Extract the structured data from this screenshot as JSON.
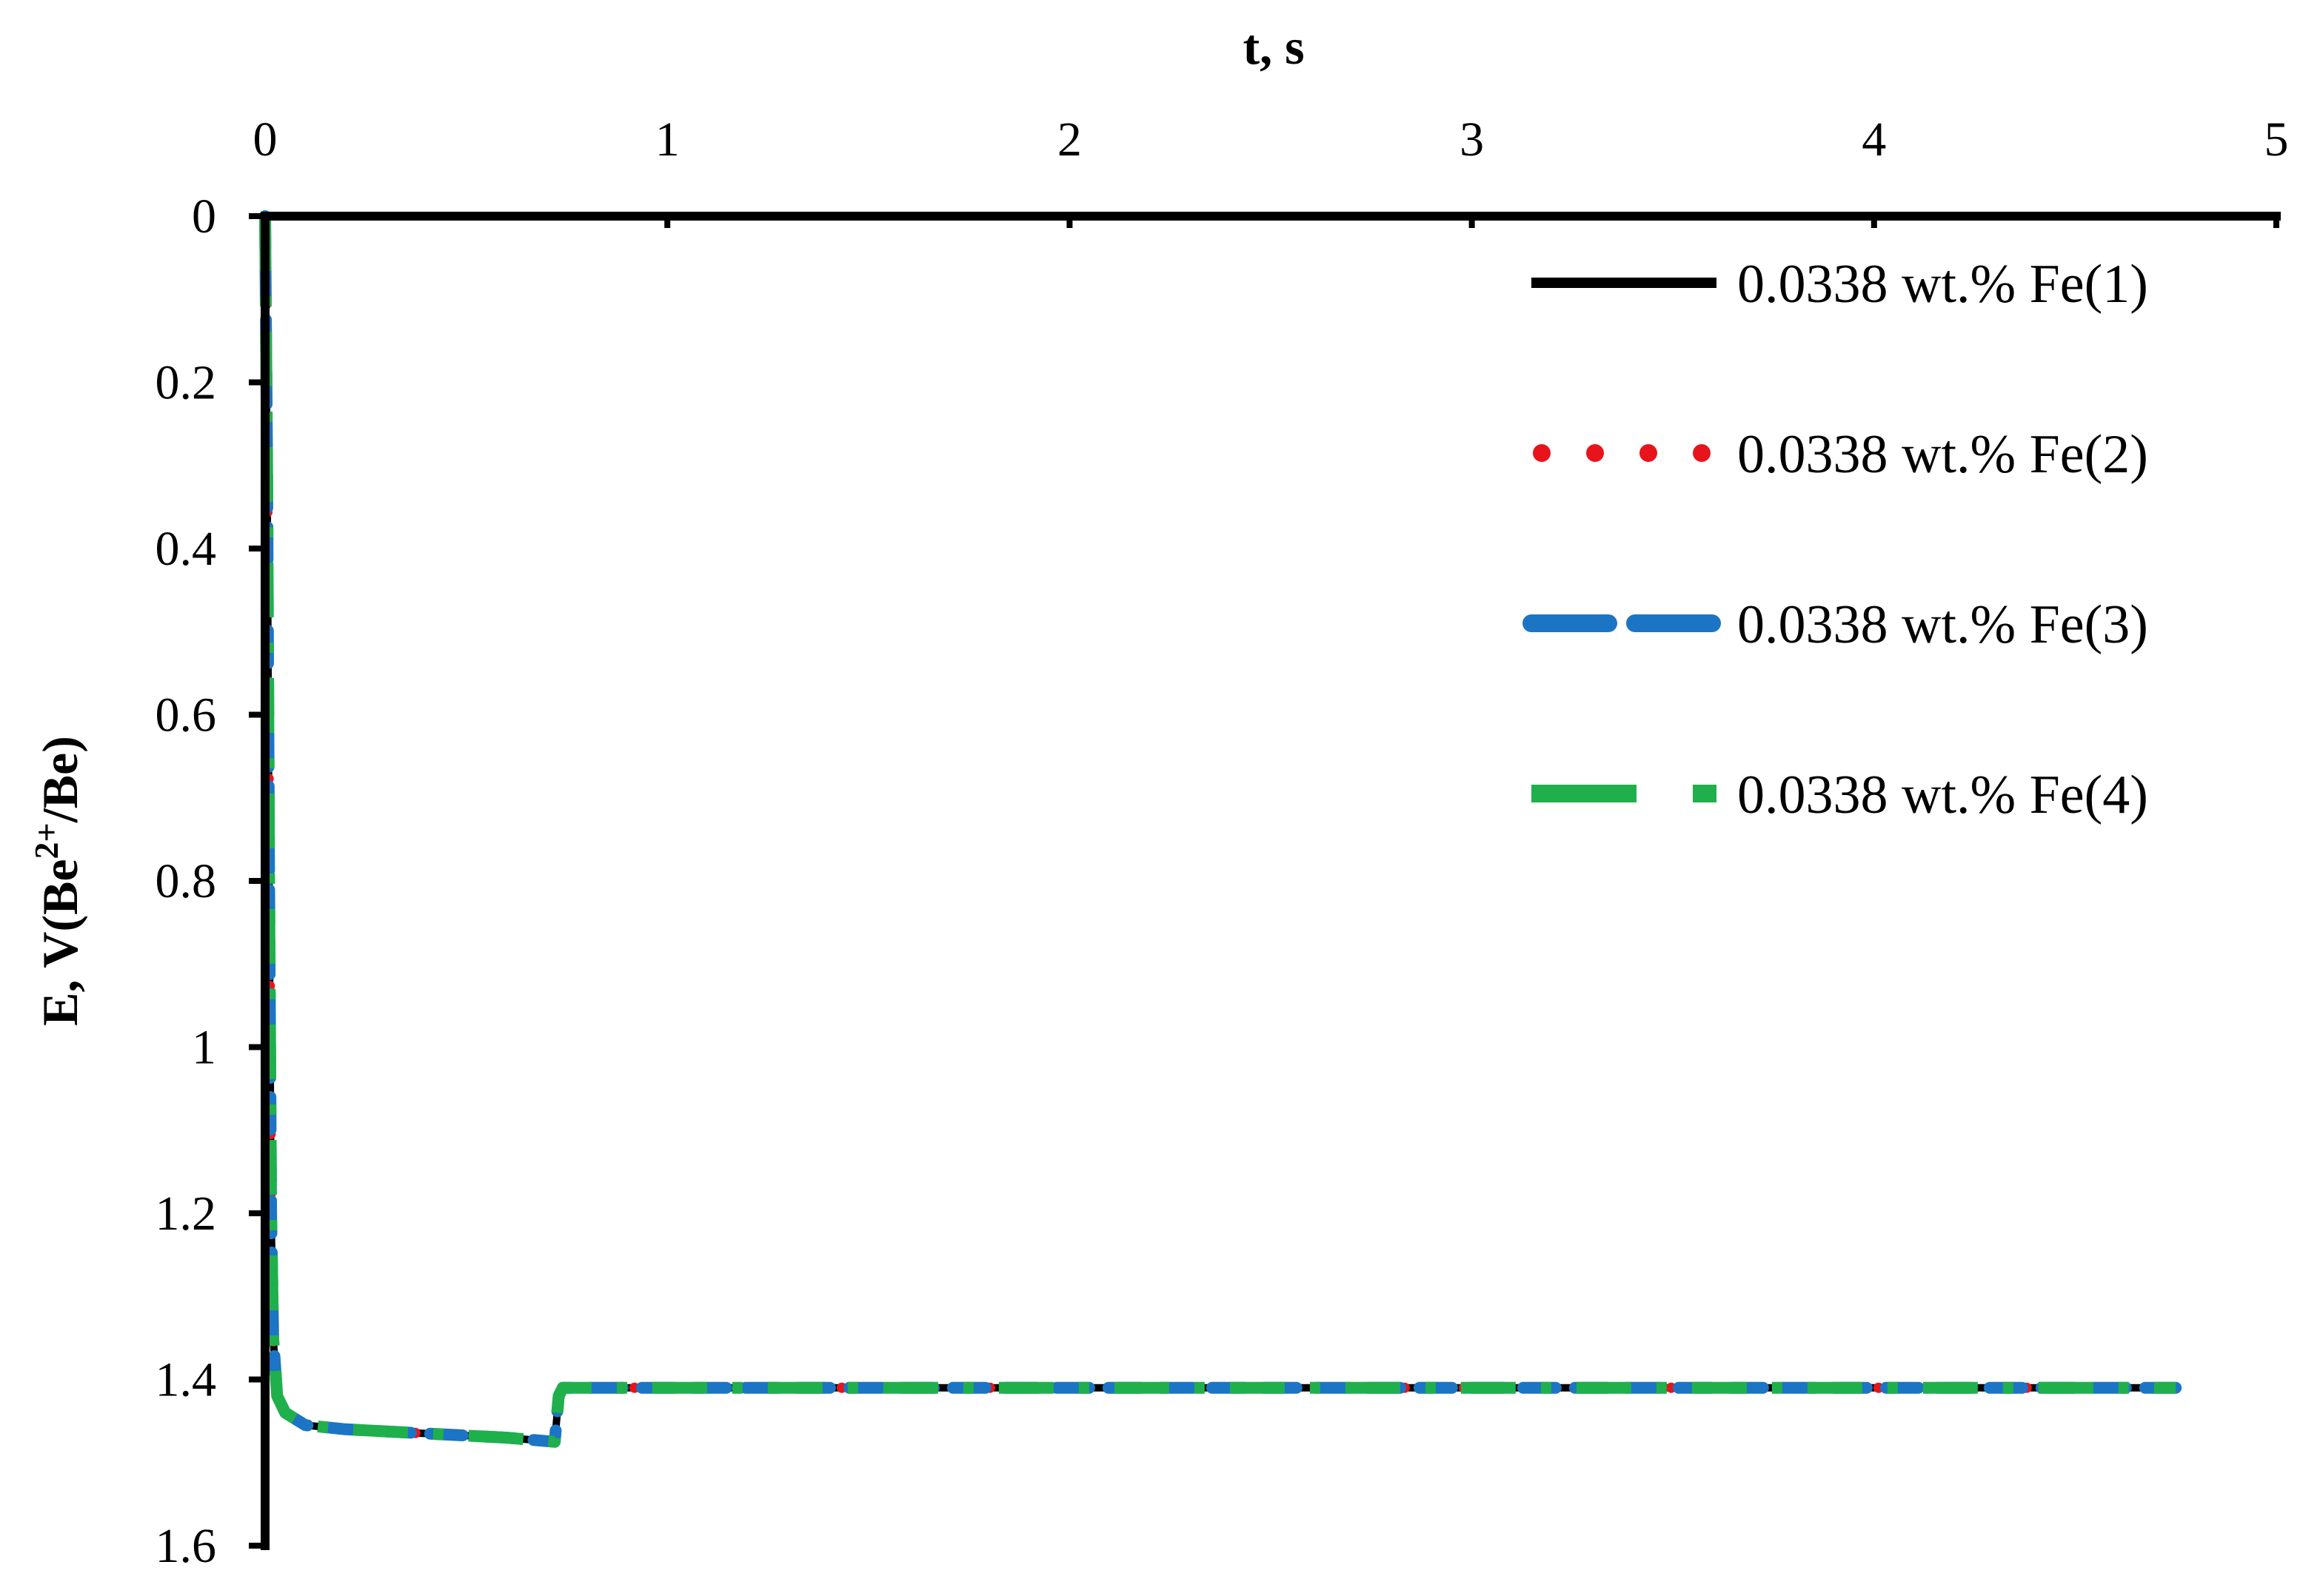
{
  "chart_data": {
    "type": "line",
    "title": "",
    "xlabel": "t, s",
    "ylabel": {
      "prefix": "E, V(Be",
      "superscript": "2+",
      "suffix": "/Be)"
    },
    "xlim": [
      0,
      5
    ],
    "ylim": [
      0,
      1.6
    ],
    "y_inverted": true,
    "x_axis_position": "top",
    "grid": false,
    "legend_position": "top-right",
    "x_ticks": [
      "0",
      "1",
      "2",
      "3",
      "4",
      "5"
    ],
    "y_ticks": [
      "0",
      "0.2",
      "0.4",
      "0.6",
      "0.8",
      "1",
      "1.2",
      "1.4",
      "1.6"
    ],
    "series": [
      {
        "name": "0.0338 wt.% Fe(1)",
        "color": "#000000",
        "style": "solid",
        "x": [
          0,
          0.005,
          0.01,
          0.015,
          0.02,
          0.03,
          0.05,
          0.1,
          0.2,
          0.4,
          0.6,
          0.72,
          0.73,
          0.74,
          0.8,
          1,
          1.5,
          2,
          2.5,
          3,
          3.5,
          4,
          4.5,
          4.75
        ],
        "y": [
          0,
          0.3,
          0.8,
          1.2,
          1.35,
          1.42,
          1.44,
          1.455,
          1.46,
          1.465,
          1.47,
          1.475,
          1.42,
          1.41,
          1.41,
          1.41,
          1.41,
          1.41,
          1.41,
          1.41,
          1.41,
          1.41,
          1.41,
          1.41
        ]
      },
      {
        "name": "0.0338 wt.% Fe(2)",
        "color": "#e8141c",
        "style": "dotted",
        "x": [
          0,
          0.005,
          0.01,
          0.015,
          0.02,
          0.03,
          0.05,
          0.1,
          0.2,
          0.4,
          0.6,
          0.72,
          0.73,
          0.74,
          0.8,
          1,
          1.5,
          2,
          2.5,
          3,
          3.5,
          4,
          4.5,
          4.75
        ],
        "y": [
          0,
          0.3,
          0.8,
          1.2,
          1.35,
          1.42,
          1.44,
          1.455,
          1.46,
          1.465,
          1.47,
          1.475,
          1.42,
          1.41,
          1.41,
          1.41,
          1.41,
          1.41,
          1.41,
          1.41,
          1.41,
          1.41,
          1.41,
          1.41
        ]
      },
      {
        "name": "0.0338 wt.% Fe(3)",
        "color": "#1c74c4",
        "style": "dashed",
        "x": [
          0,
          0.005,
          0.01,
          0.015,
          0.02,
          0.03,
          0.05,
          0.1,
          0.2,
          0.4,
          0.6,
          0.72,
          0.73,
          0.74,
          0.8,
          1,
          1.5,
          2,
          2.5,
          3,
          3.5,
          4,
          4.5,
          4.75
        ],
        "y": [
          0,
          0.3,
          0.8,
          1.2,
          1.35,
          1.42,
          1.44,
          1.455,
          1.46,
          1.465,
          1.47,
          1.475,
          1.42,
          1.41,
          1.41,
          1.41,
          1.41,
          1.41,
          1.41,
          1.41,
          1.41,
          1.41,
          1.41,
          1.41
        ]
      },
      {
        "name": "0.0338 wt.% Fe(4)",
        "color": "#1fb04c",
        "style": "long-dash-dot",
        "x": [
          0,
          0.005,
          0.01,
          0.015,
          0.02,
          0.03,
          0.05,
          0.1,
          0.2,
          0.4,
          0.6,
          0.72,
          0.73,
          0.74,
          0.8,
          1,
          1.5,
          2,
          2.5,
          3,
          3.5,
          4,
          4.5,
          4.75
        ],
        "y": [
          0,
          0.3,
          0.8,
          1.2,
          1.35,
          1.42,
          1.44,
          1.455,
          1.46,
          1.465,
          1.47,
          1.475,
          1.42,
          1.41,
          1.41,
          1.41,
          1.41,
          1.41,
          1.41,
          1.41,
          1.41,
          1.41,
          1.41,
          1.41
        ]
      }
    ]
  }
}
